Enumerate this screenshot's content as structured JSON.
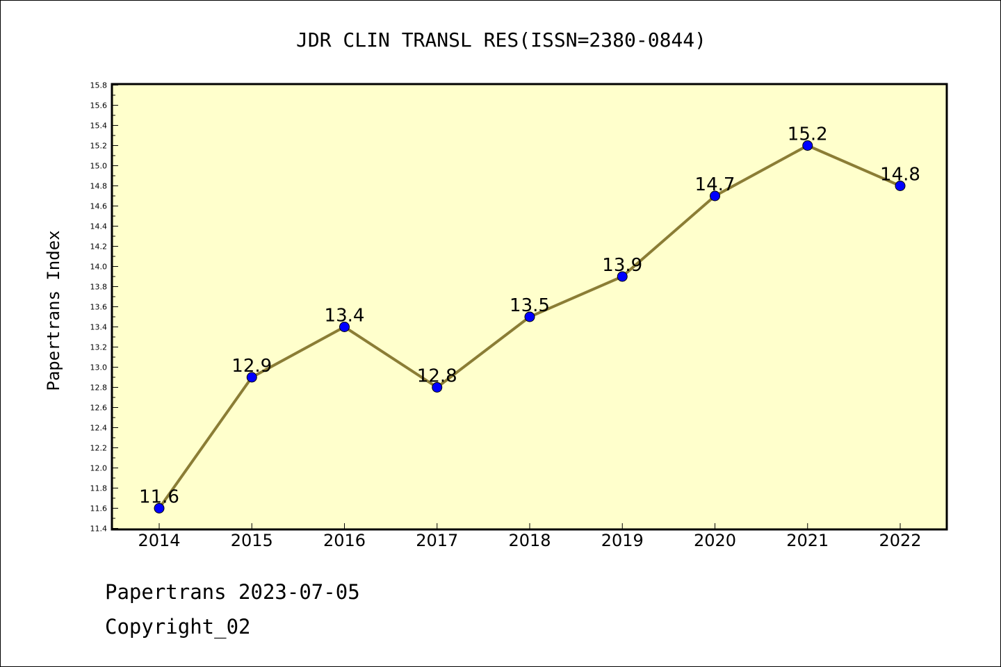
{
  "chart_data": {
    "type": "line",
    "title": "JDR CLIN TRANSL RES(ISSN=2380-0844)",
    "xlabel": "",
    "ylabel": "Papertrans Index",
    "categories": [
      "2014",
      "2015",
      "2016",
      "2017",
      "2018",
      "2019",
      "2020",
      "2021",
      "2022"
    ],
    "values": [
      11.6,
      12.9,
      13.4,
      12.8,
      13.5,
      13.9,
      14.7,
      15.2,
      14.8
    ],
    "data_labels": [
      "11.6",
      "12.9",
      "13.4",
      "12.8",
      "13.5",
      "13.9",
      "14.7",
      "15.2",
      "14.8"
    ],
    "ylim": [
      11.4,
      15.8
    ],
    "yticks": [
      "11.4",
      "11.6",
      "11.8",
      "12.0",
      "12.2",
      "12.4",
      "12.6",
      "12.8",
      "13.0",
      "13.2",
      "13.4",
      "13.6",
      "13.8",
      "14.0",
      "14.2",
      "14.4",
      "14.6",
      "14.8",
      "15.0",
      "15.2",
      "15.4",
      "15.6",
      "15.8"
    ],
    "grid": false,
    "legend": "none",
    "colors": {
      "plot_background": "#ffffcc",
      "line": "#8b7d35",
      "marker": "#0000ff"
    }
  },
  "footer": {
    "line1": "Papertrans 2023-07-05",
    "line2": "Copyright_02"
  }
}
